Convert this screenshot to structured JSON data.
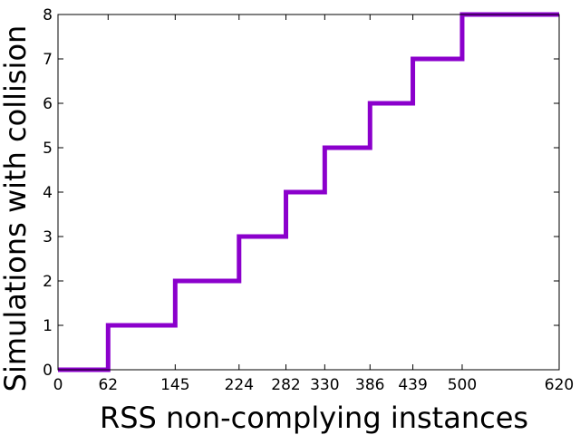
{
  "chart_data": {
    "type": "line",
    "step": "post",
    "title": "",
    "xlabel": "RSS non-complying instances",
    "ylabel": "Simulations with collision",
    "xlim": [
      0,
      620
    ],
    "ylim": [
      0,
      8
    ],
    "xticks": [
      0,
      62,
      145,
      224,
      282,
      330,
      386,
      439,
      500,
      620
    ],
    "yticks": [
      0,
      1,
      2,
      3,
      4,
      5,
      6,
      7,
      8
    ],
    "grid": false,
    "legend": "none",
    "series": [
      {
        "color": "#8b00cc",
        "x": [
          0,
          62,
          145,
          224,
          282,
          330,
          386,
          439,
          500,
          620
        ],
        "y": [
          0,
          1,
          2,
          3,
          4,
          5,
          6,
          7,
          8,
          8
        ]
      }
    ]
  }
}
